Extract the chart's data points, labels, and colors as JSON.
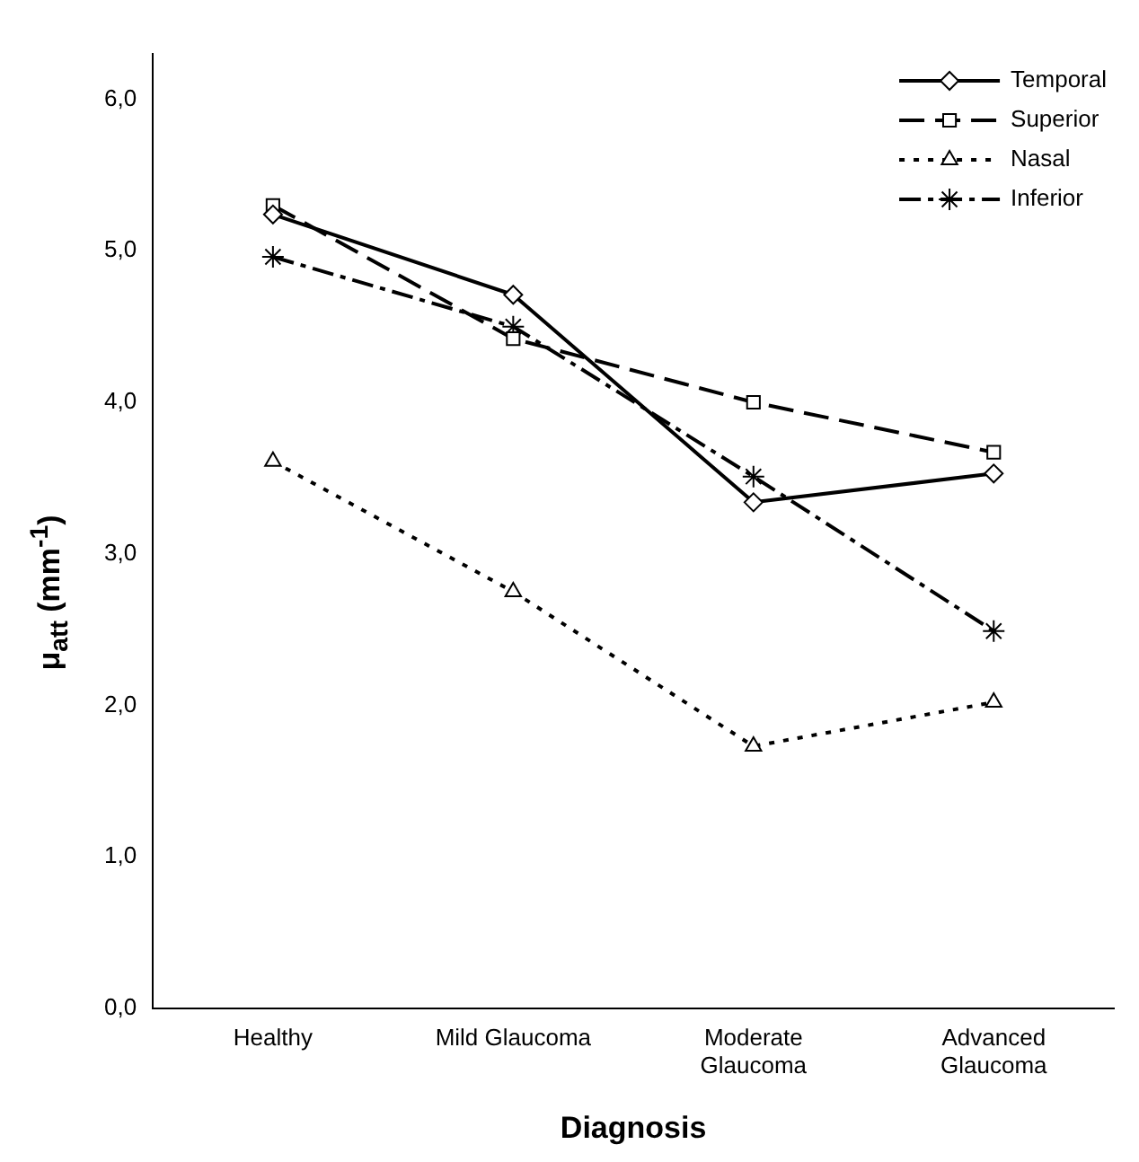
{
  "chart_data": {
    "type": "line",
    "xlabel": "Diagnosis",
    "ylabel": "μ$_{att}$ (mm$^{-1}$)",
    "categories": [
      "Healthy",
      "Mild Glaucoma",
      "Moderate Glaucoma",
      "Advanced Glaucoma"
    ],
    "series": [
      {
        "name": "Temporal",
        "color": "#000000",
        "marker": "diamond",
        "line_style": "solid",
        "values": [
          5.24,
          4.71,
          3.34,
          3.53
        ]
      },
      {
        "name": "Superior",
        "color": "#000000",
        "marker": "square",
        "line_style": "dashed",
        "values": [
          5.3,
          4.42,
          4.0,
          3.67
        ]
      },
      {
        "name": "Nasal",
        "color": "#000000",
        "marker": "triangle",
        "line_style": "dotted",
        "values": [
          3.61,
          2.75,
          1.73,
          2.02
        ]
      },
      {
        "name": "Inferior",
        "color": "#000000",
        "marker": "cross",
        "line_style": "dashdot",
        "values": [
          4.96,
          4.5,
          3.51,
          2.49
        ]
      }
    ],
    "ylim": [
      0,
      6.3
    ],
    "yticks": [
      {
        "value": 0,
        "label": "0,0"
      },
      {
        "value": 1,
        "label": "1,0"
      },
      {
        "value": 2,
        "label": "2,0"
      },
      {
        "value": 3,
        "label": "3,0"
      },
      {
        "value": 4,
        "label": "4,0"
      },
      {
        "value": 5,
        "label": "5,0"
      },
      {
        "value": 6,
        "label": "6,0"
      }
    ],
    "grid": false,
    "legend": "top right"
  }
}
